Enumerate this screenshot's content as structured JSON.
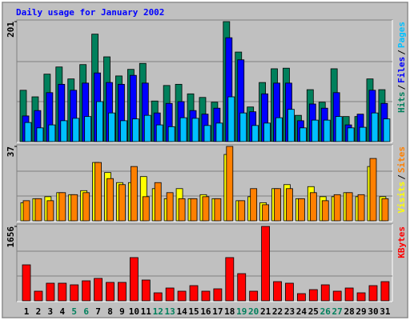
{
  "title": "Daily usage for January 2002",
  "legend_separator": "/",
  "categories": [
    "1",
    "2",
    "3",
    "4",
    "5",
    "6",
    "7",
    "8",
    "9",
    "10",
    "11",
    "12",
    "13",
    "14",
    "15",
    "16",
    "17",
    "18",
    "19",
    "20",
    "21",
    "22",
    "23",
    "24",
    "25",
    "26",
    "27",
    "28",
    "29",
    "30",
    "31"
  ],
  "category_colors": [
    "#000000",
    "#000000",
    "#000000",
    "#000000",
    "#00805c",
    "#00805c",
    "#000000",
    "#000000",
    "#000000",
    "#000000",
    "#000000",
    "#00805c",
    "#00805c",
    "#000000",
    "#000000",
    "#000000",
    "#000000",
    "#000000",
    "#00805c",
    "#00805c",
    "#000000",
    "#000000",
    "#000000",
    "#000000",
    "#000000",
    "#00805c",
    "#00805c",
    "#000000",
    "#000000",
    "#000000",
    "#000000"
  ],
  "chart_data": [
    {
      "type": "bar",
      "ylim": [
        0,
        201
      ],
      "yticks": [
        201
      ],
      "series": [
        {
          "name": "Hits",
          "color": "#00805c",
          "values": [
            86,
            75,
            113,
            125,
            105,
            129,
            180,
            142,
            110,
            121,
            131,
            68,
            94,
            96,
            80,
            74,
            66,
            201,
            150,
            58,
            99,
            122,
            123,
            44,
            87,
            66,
            122,
            42,
            42,
            105,
            87
          ]
        },
        {
          "name": "Files",
          "color": "#0000ff",
          "values": [
            43,
            52,
            82,
            96,
            86,
            98,
            115,
            99,
            96,
            111,
            98,
            48,
            64,
            67,
            52,
            46,
            56,
            174,
            137,
            50,
            80,
            98,
            98,
            35,
            63,
            56,
            82,
            28,
            46,
            86,
            64
          ]
        },
        {
          "name": "Pages",
          "color": "#00c0ff",
          "values": [
            32,
            23,
            28,
            35,
            39,
            42,
            67,
            48,
            35,
            38,
            44,
            28,
            25,
            40,
            39,
            27,
            31,
            75,
            48,
            27,
            31,
            40,
            54,
            23,
            36,
            36,
            42,
            23,
            24,
            48,
            38
          ]
        }
      ]
    },
    {
      "type": "bar",
      "ylim": [
        0,
        37
      ],
      "yticks": [
        37
      ],
      "series": [
        {
          "name": "Visits",
          "color": "#ffff00",
          "values": [
            9,
            11,
            12,
            14,
            13,
            15,
            29,
            24,
            19,
            19,
            22,
            16,
            11,
            16,
            11,
            13,
            11,
            33,
            10,
            12,
            9,
            16,
            18,
            11,
            17,
            12,
            12,
            14,
            12,
            27,
            12
          ]
        },
        {
          "name": "Sites",
          "color": "#ff8000",
          "values": [
            10,
            11,
            10,
            14,
            13,
            14,
            29,
            21,
            18,
            27,
            12,
            19,
            14,
            11,
            11,
            12,
            11,
            37,
            10,
            16,
            8,
            16,
            16,
            11,
            14,
            10,
            13,
            14,
            13,
            31,
            11
          ]
        }
      ]
    },
    {
      "type": "bar",
      "ylim": [
        0,
        1656
      ],
      "yticks": [
        1656
      ],
      "series": [
        {
          "name": "KBytes",
          "color": "#ff0000",
          "values": [
            801,
            214,
            392,
            392,
            356,
            445,
            499,
            410,
            410,
            962,
            463,
            178,
            285,
            214,
            338,
            214,
            267,
            962,
            605,
            214,
            1656,
            427,
            392,
            160,
            249,
            356,
            214,
            285,
            178,
            338,
            427
          ]
        }
      ]
    }
  ]
}
